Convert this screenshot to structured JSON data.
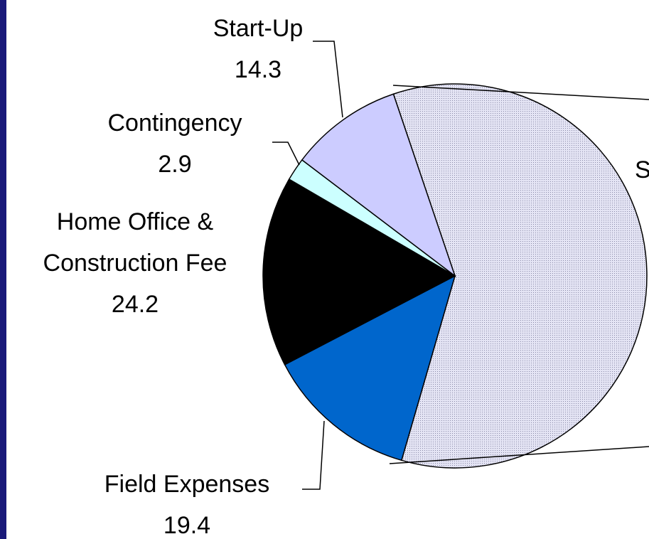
{
  "chart_data": {
    "type": "pie",
    "categories": [
      "S",
      "Field Expenses",
      "Home Office & Construction Fee",
      "Contingency",
      "Start-Up"
    ],
    "values": [
      90,
      19.4,
      24.2,
      2.9,
      14.3
    ],
    "colors": [
      "#dcdcf0",
      "#0066cc",
      "#000000",
      "#ccffff",
      "#ccccff"
    ]
  }
}
